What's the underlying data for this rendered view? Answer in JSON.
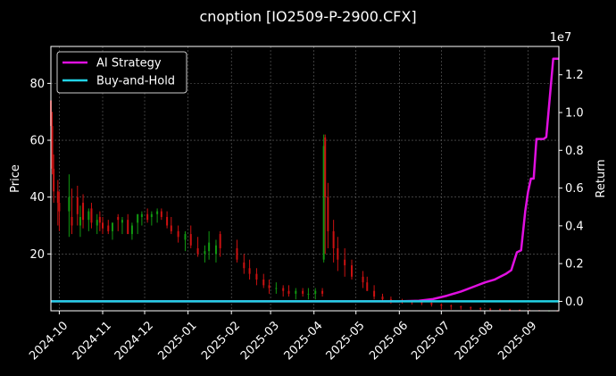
{
  "colors": {
    "background": "#000000",
    "ai_strategy": "#e010e0",
    "buy_and_hold": "#22d3e6",
    "candle_up": "#119911",
    "candle_down": "#cc1111",
    "grid": "#666666",
    "text": "#ffffff"
  },
  "chart_data": {
    "type": "line",
    "title": "cnoption [IO2509-P-2900.CFX]",
    "ylabel": "Price",
    "y2label": "Return",
    "y2_offset_label": "1e7",
    "ylim": [
      0,
      93
    ],
    "y2lim": [
      -500000,
      13500000
    ],
    "xlim": [
      "2024-09-25",
      "2025-09-23"
    ],
    "grid": true,
    "legend_position": "top-left",
    "x_ticks": [
      "2024-10",
      "2024-11",
      "2024-12",
      "2025-01",
      "2025-02",
      "2025-03",
      "2025-04",
      "2025-05",
      "2025-06",
      "2025-07",
      "2025-08",
      "2025-09"
    ],
    "y_ticks": [
      20,
      40,
      60,
      80
    ],
    "y2_ticks": [
      0,
      0.2,
      0.4,
      0.6,
      0.8,
      1.0,
      1.2
    ],
    "y2_tick_scale": 10000000,
    "candles": {
      "dates": [
        "2024-09-25",
        "2024-09-26",
        "2024-09-27",
        "2024-09-30",
        "2024-10-01",
        "2024-10-08",
        "2024-10-10",
        "2024-10-14",
        "2024-10-16",
        "2024-10-18",
        "2024-10-22",
        "2024-10-24",
        "2024-10-28",
        "2024-10-30",
        "2024-11-01",
        "2024-11-05",
        "2024-11-08",
        "2024-11-12",
        "2024-11-15",
        "2024-11-19",
        "2024-11-22",
        "2024-11-26",
        "2024-11-29",
        "2024-12-03",
        "2024-12-06",
        "2024-12-10",
        "2024-12-13",
        "2024-12-17",
        "2024-12-20",
        "2024-12-25",
        "2024-12-30",
        "2025-01-03",
        "2025-01-08",
        "2025-01-13",
        "2025-01-16",
        "2025-01-21",
        "2025-01-24",
        "2025-02-05",
        "2025-02-10",
        "2025-02-14",
        "2025-02-19",
        "2025-02-24",
        "2025-02-28",
        "2025-03-05",
        "2025-03-10",
        "2025-03-14",
        "2025-03-19",
        "2025-03-24",
        "2025-03-28",
        "2025-04-02",
        "2025-04-07",
        "2025-04-08",
        "2025-04-09",
        "2025-04-11",
        "2025-04-15",
        "2025-04-18",
        "2025-04-23",
        "2025-04-28",
        "2025-05-06",
        "2025-05-09",
        "2025-05-14",
        "2025-05-20",
        "2025-05-26",
        "2025-06-03",
        "2025-06-10",
        "2025-06-17",
        "2025-06-24",
        "2025-07-01",
        "2025-07-08",
        "2025-07-15",
        "2025-07-22",
        "2025-07-29",
        "2025-08-05",
        "2025-08-12",
        "2025-08-19",
        "2025-08-26",
        "2025-09-02",
        "2025-09-09",
        "2025-09-16",
        "2025-09-22"
      ],
      "open": [
        74,
        65,
        50,
        42,
        38,
        35,
        33,
        40,
        30,
        38,
        32,
        36,
        30,
        33,
        31,
        30,
        28,
        33,
        31,
        32,
        27,
        31,
        33,
        34,
        33,
        34,
        35,
        33,
        30,
        28,
        25,
        27,
        22,
        20,
        21,
        20,
        27,
        22,
        17,
        15,
        13,
        11,
        9,
        8,
        8,
        7,
        6,
        7,
        6,
        6,
        7,
        18,
        61,
        40,
        28,
        22,
        18,
        16,
        12,
        10,
        7,
        5,
        4,
        3.5,
        3.2,
        3.0,
        2.8,
        2.2,
        1.8,
        1.5,
        1.2,
        0.9,
        0.7,
        0.6,
        0.5,
        0.3,
        0.2,
        0.15,
        0.1,
        0.1
      ],
      "high": [
        76,
        70,
        55,
        46,
        42,
        48,
        43,
        44,
        37,
        41,
        36,
        38,
        34,
        35,
        33,
        32,
        31,
        34,
        33,
        34,
        31,
        34,
        35,
        36,
        35,
        36,
        36,
        35,
        33,
        30,
        28,
        30,
        26,
        23,
        28,
        25,
        28,
        25,
        20,
        18,
        15,
        13,
        11,
        10,
        9,
        9,
        8,
        8,
        8,
        8,
        8,
        62,
        62,
        45,
        32,
        26,
        22,
        18,
        14,
        12,
        9,
        6,
        5,
        4.2,
        3.8,
        3.5,
        3.2,
        2.6,
        2.2,
        1.8,
        1.5,
        1.2,
        1.0,
        0.8,
        0.7,
        0.5,
        0.4,
        0.3,
        0.2,
        0.2
      ],
      "low": [
        62,
        48,
        38,
        30,
        28,
        26,
        27,
        30,
        26,
        29,
        28,
        29,
        27,
        28,
        27,
        27,
        25,
        28,
        27,
        27,
        25,
        27,
        30,
        31,
        30,
        31,
        32,
        29,
        27,
        24,
        21,
        22,
        19,
        17,
        18,
        17,
        19,
        17,
        13,
        11,
        9,
        8,
        6,
        6,
        5,
        5,
        4,
        5,
        4,
        4,
        5,
        17,
        20,
        22,
        17,
        14,
        12,
        11,
        8,
        7,
        4,
        3,
        2.5,
        2.5,
        2.2,
        2.0,
        1.5,
        0.5,
        0.4,
        0.4,
        0.3,
        0.2,
        0.1,
        0.1,
        0.1,
        0.05,
        0.05,
        0.05,
        0.0,
        0.0
      ],
      "close": [
        65,
        50,
        42,
        38,
        35,
        40,
        30,
        34,
        33,
        32,
        35,
        31,
        32,
        31,
        29,
        28,
        31,
        32,
        32,
        27,
        30,
        34,
        34,
        32,
        34,
        35,
        33,
        30,
        28,
        26,
        27,
        23,
        20,
        21,
        24,
        23,
        22,
        18,
        15,
        13,
        11,
        9,
        8,
        8,
        7,
        6,
        7,
        6,
        6,
        7,
        6,
        58,
        40,
        28,
        22,
        18,
        16,
        12,
        10,
        7,
        5,
        4,
        3.5,
        3.2,
        3.0,
        2.8,
        2.2,
        1.8,
        1.5,
        1.2,
        0.9,
        0.7,
        0.6,
        0.5,
        0.3,
        0.2,
        0.15,
        0.1,
        0.1,
        0.05
      ]
    },
    "series": [
      {
        "name": "AI Strategy",
        "axis": "right",
        "x": [
          "2024-09-25",
          "2025-05-15",
          "2025-06-01",
          "2025-06-15",
          "2025-06-25",
          "2025-07-05",
          "2025-07-15",
          "2025-07-25",
          "2025-08-01",
          "2025-08-08",
          "2025-08-12",
          "2025-08-16",
          "2025-08-20",
          "2025-08-24",
          "2025-08-27",
          "2025-08-30",
          "2025-09-01",
          "2025-09-03",
          "2025-09-05",
          "2025-09-07",
          "2025-09-10",
          "2025-09-12",
          "2025-09-14",
          "2025-09-17",
          "2025-09-19",
          "2025-09-21",
          "2025-09-23"
        ],
        "values": [
          0,
          0,
          0,
          30000,
          120000,
          300000,
          520000,
          800000,
          1000000,
          1150000,
          1300000,
          1450000,
          1650000,
          2600000,
          2700000,
          4800000,
          5800000,
          6500000,
          6500000,
          8600000,
          8600000,
          8600000,
          8700000,
          11200000,
          12850000,
          12850000,
          12850000
        ]
      },
      {
        "name": "Buy-and-Hold",
        "axis": "right",
        "x": [
          "2024-09-25",
          "2025-09-23"
        ],
        "values": [
          0,
          0
        ]
      }
    ]
  }
}
